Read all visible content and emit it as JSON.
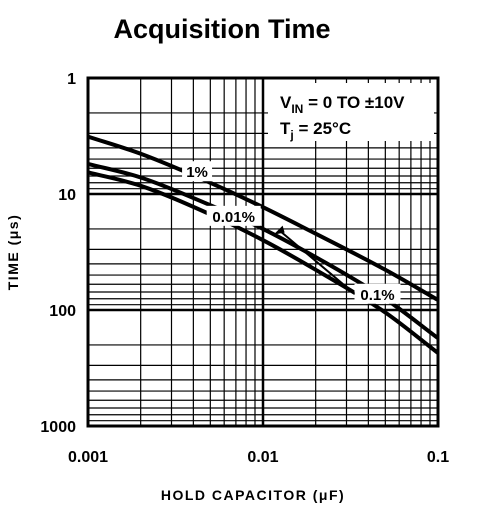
{
  "chart_data": {
    "type": "line",
    "title": "Acquisition Time",
    "xlabel": "HOLD CAPACITOR (μF)",
    "ylabel": "TIME (μs)",
    "xscale": "log",
    "yscale": "log",
    "y_inverted": true,
    "xlim": [
      0.001,
      0.1
    ],
    "ylim": [
      1,
      1000
    ],
    "x_ticks": [
      "0.001",
      "0.01",
      "0.1"
    ],
    "y_ticks": [
      "1",
      "10",
      "100",
      "1000"
    ],
    "grid": true,
    "annotations": [
      {
        "text": "V_IN = 0 TO ±10V",
        "main": "V",
        "sub": "IN",
        "rest": " = 0 TO ±10V"
      },
      {
        "text": "T_j = 25°C",
        "main": "T",
        "sub": "j",
        "rest": " = 25°C"
      }
    ],
    "series": [
      {
        "name": "1%",
        "x": [
          0.001,
          0.002,
          0.005,
          0.01,
          0.02,
          0.05,
          0.1
        ],
        "y": [
          3.2,
          4.5,
          8.0,
          13.0,
          22.0,
          45.0,
          82.0
        ]
      },
      {
        "name": "0.1%",
        "x": [
          0.001,
          0.002,
          0.005,
          0.01,
          0.02,
          0.05,
          0.1
        ],
        "y": [
          5.5,
          7.2,
          12.5,
          20.0,
          35.0,
          80.0,
          175.0
        ]
      },
      {
        "name": "0.01%",
        "x": [
          0.001,
          0.002,
          0.005,
          0.01,
          0.02,
          0.05,
          0.1
        ],
        "y": [
          6.5,
          8.5,
          15.0,
          25.0,
          45.0,
          105.0,
          235.0
        ]
      }
    ]
  }
}
